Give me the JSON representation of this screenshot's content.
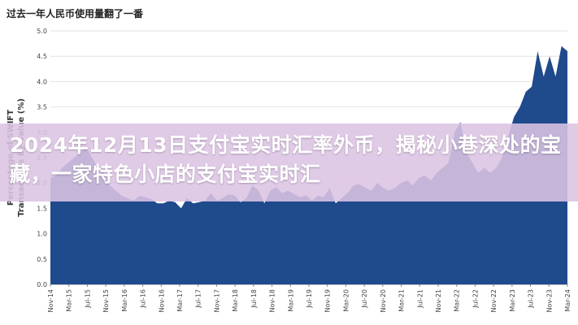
{
  "page": {
    "chart_title": "过去一年人民币使用量翻了一番",
    "overlay_headline": "2024年12月13日支付宝实时汇率外币，揭秘小巷深处的宝藏，一家特色小店的支付宝实时汇"
  },
  "colors": {
    "area_fill": "#1f4a8c",
    "grid": "#e2e2e2",
    "overlay_band": "#dcc4e4",
    "overlay_text": "#ffffff"
  },
  "chart_data": {
    "type": "area",
    "title": "过去一年人民币使用量翻了一番",
    "ylabel": "Percentage of SWIFT Transactions by Value (%)",
    "xlabel": "",
    "ylim": [
      0,
      5.0
    ],
    "yticks": [
      "0.0",
      "0.5",
      "1.0",
      "1.5",
      "2.0",
      "2.5",
      "3.0",
      "3.5",
      "4.0",
      "4.5",
      "5.0"
    ],
    "grid": true,
    "x_tick_labels": [
      "Nov-14",
      "Mar-15",
      "Jul-15",
      "Nov-15",
      "Mar-16",
      "Jul-16",
      "Nov-16",
      "Mar-17",
      "Jul-17",
      "Nov-17",
      "Mar-18",
      "Jul-18",
      "Nov-18",
      "Mar-19",
      "Jul-19",
      "Nov-19",
      "Mar-20",
      "Jul-20",
      "Nov-20",
      "Mar-21",
      "Jul-21",
      "Nov-21",
      "Mar-22",
      "Jul-22",
      "Nov-22",
      "Mar-23",
      "Jul-23",
      "Nov-23",
      "Mar-24"
    ],
    "series": [
      {
        "values": [
          2.1,
          2.15,
          2.3,
          2.4,
          2.5,
          2.6,
          2.7,
          2.5,
          2.3,
          2.2,
          1.95,
          1.85,
          1.75,
          1.7,
          1.65,
          1.75,
          1.72,
          1.68,
          1.6,
          1.6,
          1.65,
          1.62,
          1.5,
          1.7,
          1.6,
          1.62,
          1.65,
          1.8,
          1.65,
          1.7,
          1.78,
          1.75,
          1.62,
          1.7,
          1.95,
          1.85,
          1.6,
          1.85,
          1.92,
          1.8,
          1.85,
          1.78,
          1.72,
          1.76,
          1.65,
          1.75,
          1.72,
          1.9,
          1.6,
          1.7,
          1.8,
          1.95,
          1.98,
          1.9,
          1.85,
          2.0,
          1.9,
          1.85,
          1.9,
          2.0,
          2.05,
          1.95,
          2.1,
          2.15,
          2.05,
          2.2,
          2.3,
          2.4,
          3.0,
          3.2,
          2.6,
          2.4,
          2.2,
          2.3,
          2.2,
          2.3,
          2.5,
          2.9,
          3.3,
          3.5,
          3.8,
          3.9,
          4.6,
          4.1,
          4.5,
          4.1,
          4.7,
          4.6
        ]
      }
    ]
  }
}
